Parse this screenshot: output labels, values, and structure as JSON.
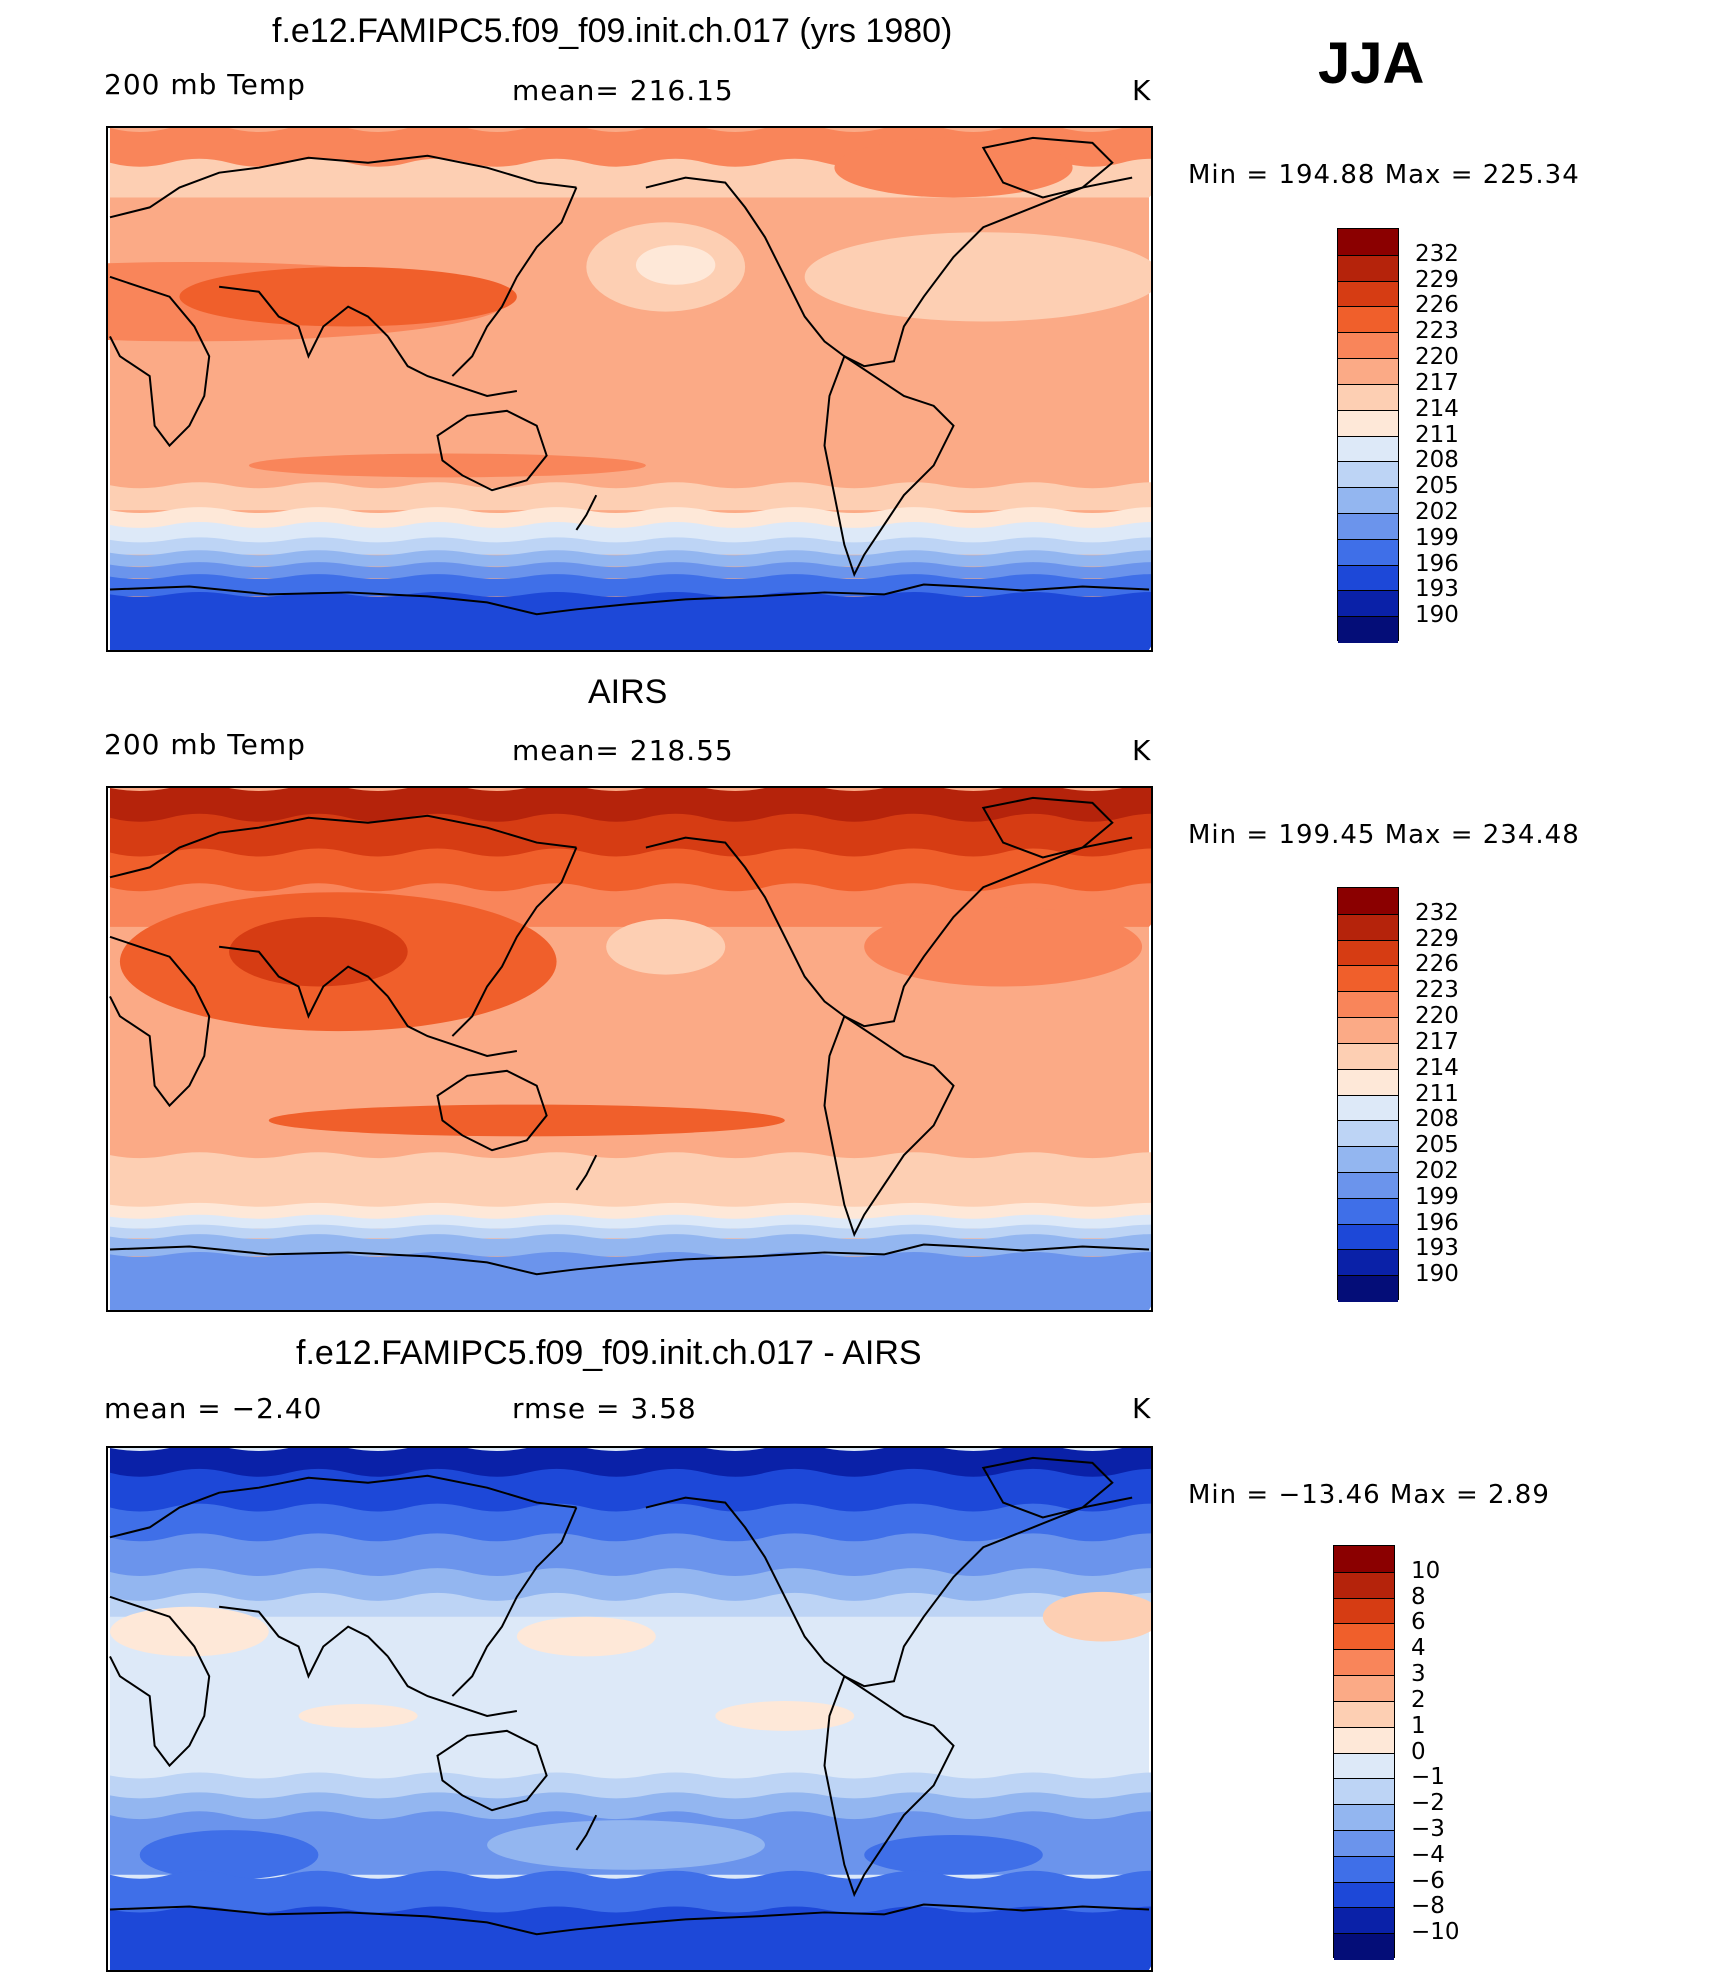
{
  "season": "JJA",
  "panels": [
    {
      "id": "model",
      "title": "f.e12.FAMIPC5.f09_f09.init.ch.017 (yrs 1980)",
      "left_label": "200 mb Temp",
      "center_label": "mean= 216.15",
      "units": "K",
      "minmax": "Min  =  194.88  Max  =  225.34",
      "colorbar": {
        "labels": [
          "232",
          "229",
          "226",
          "223",
          "220",
          "217",
          "214",
          "211",
          "208",
          "205",
          "202",
          "199",
          "196",
          "193",
          "190"
        ],
        "colors": [
          "#8b0000",
          "#b5230b",
          "#d63c13",
          "#f05f2b",
          "#f9855a",
          "#fbaa86",
          "#fdcfb3",
          "#fee8d8",
          "#dde9f8",
          "#bdd4f5",
          "#93b6f0",
          "#6b94ec",
          "#3f6fe8",
          "#1d48d8",
          "#0a21a8",
          "#040d78"
        ]
      },
      "map_style": "model"
    },
    {
      "id": "obs",
      "title": "AIRS",
      "left_label": "200 mb Temp",
      "center_label": "mean= 218.55",
      "units": "K",
      "minmax": "Min  =  199.45  Max  =  234.48",
      "colorbar": {
        "labels": [
          "232",
          "229",
          "226",
          "223",
          "220",
          "217",
          "214",
          "211",
          "208",
          "205",
          "202",
          "199",
          "196",
          "193",
          "190"
        ],
        "colors": [
          "#8b0000",
          "#b5230b",
          "#d63c13",
          "#f05f2b",
          "#f9855a",
          "#fbaa86",
          "#fdcfb3",
          "#fee8d8",
          "#dde9f8",
          "#bdd4f5",
          "#93b6f0",
          "#6b94ec",
          "#3f6fe8",
          "#1d48d8",
          "#0a21a8",
          "#040d78"
        ]
      },
      "map_style": "obs"
    },
    {
      "id": "diff",
      "title": "f.e12.FAMIPC5.f09_f09.init.ch.017 - AIRS",
      "left_label": "mean =    −2.40",
      "center_label": "rmse =     3.58",
      "units": "K",
      "minmax": "Min  =  −13.46  Max  =      2.89",
      "colorbar": {
        "labels": [
          "10",
          "8",
          "6",
          "4",
          "3",
          "2",
          "1",
          "0",
          "−1",
          "−2",
          "−3",
          "−4",
          "−6",
          "−8",
          "−10"
        ],
        "colors": [
          "#8b0000",
          "#b5230b",
          "#d63c13",
          "#f05f2b",
          "#f9855a",
          "#fbaa86",
          "#fdcfb3",
          "#fee8d8",
          "#dde9f8",
          "#bdd4f5",
          "#93b6f0",
          "#6b94ec",
          "#3f6fe8",
          "#1d48d8",
          "#0a21a8",
          "#040d78"
        ]
      },
      "map_style": "diff"
    }
  ]
}
